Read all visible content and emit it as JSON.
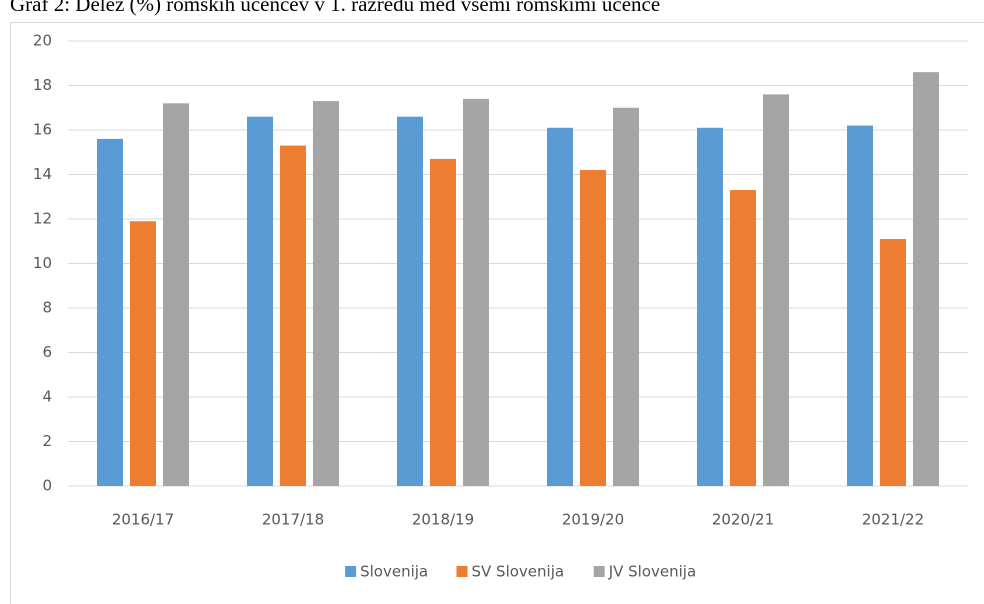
{
  "chart_data": {
    "type": "bar",
    "title": "Graf 2: Delež (%) romskih učencev v 1. razredu med vsemi romskimi učence",
    "categories": [
      "2016/17",
      "2017/18",
      "2018/19",
      "2019/20",
      "2020/21",
      "2021/22"
    ],
    "series": [
      {
        "name": "Slovenija",
        "color": "#5b9bd5",
        "values": [
          15.6,
          16.6,
          16.6,
          16.1,
          16.1,
          16.2
        ]
      },
      {
        "name": "SV Slovenija",
        "color": "#ed7d31",
        "values": [
          11.9,
          15.3,
          14.7,
          14.2,
          13.3,
          11.1
        ]
      },
      {
        "name": "JV Slovenija",
        "color": "#a5a5a5",
        "values": [
          17.2,
          17.3,
          17.4,
          17.0,
          17.6,
          18.6
        ]
      }
    ],
    "ylim": [
      0,
      20
    ],
    "yticks": [
      0,
      2,
      4,
      6,
      8,
      10,
      12,
      14,
      16,
      18,
      20
    ],
    "grid": true,
    "legend": "bottom"
  }
}
